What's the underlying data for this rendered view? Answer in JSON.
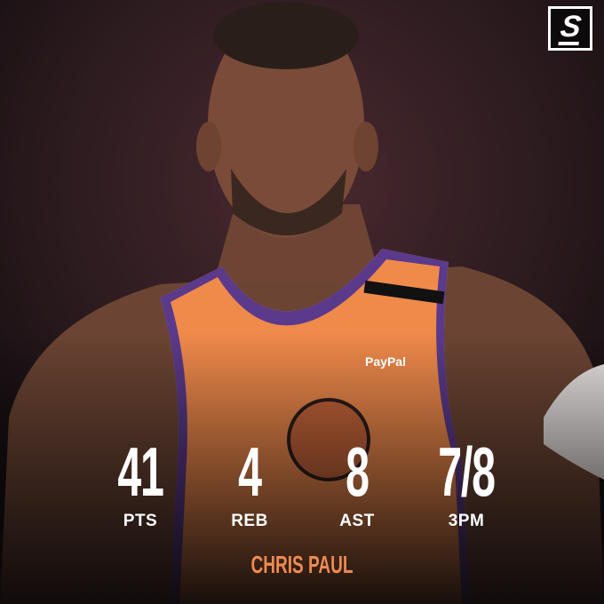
{
  "brand": {
    "logo_text": "S",
    "logo_name": "theScore"
  },
  "player": {
    "name": "CHRIS PAUL"
  },
  "jersey": {
    "sponsor": "PayPal"
  },
  "stats": [
    {
      "value": "41",
      "label": "PTS"
    },
    {
      "value": "4",
      "label": "REB"
    },
    {
      "value": "8",
      "label": "AST"
    },
    {
      "value": "7/8",
      "label": "3PM"
    }
  ],
  "colors": {
    "accent": "#ef8a4f",
    "jersey": "#f08a4b",
    "trim": "#5b3a8c",
    "background": "#1a1214"
  }
}
